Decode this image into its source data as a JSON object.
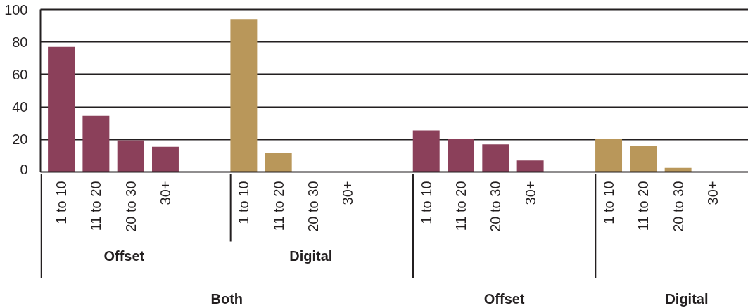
{
  "chart_data": {
    "type": "bar",
    "categories": [
      "1 to 10",
      "11 to 20",
      "20 to 30",
      "30+",
      "1 to 10",
      "11 to 20",
      "20 to 30",
      "30+",
      "1 to 10",
      "11 to 20",
      "20 to 30",
      "30+",
      "1 to 10",
      "11 to 20",
      "20 to 30",
      "30+"
    ],
    "values": [
      77,
      34.5,
      19.5,
      15.5,
      94,
      11.5,
      null,
      null,
      25.5,
      20.5,
      17,
      7,
      20.5,
      16,
      2.5,
      null
    ],
    "colors": [
      "#8b405a",
      "#8b405a",
      "#8b405a",
      "#8b405a",
      "#b9975a",
      "#b9975a",
      "#b9975a",
      "#b9975a",
      "#8b405a",
      "#8b405a",
      "#8b405a",
      "#8b405a",
      "#b9975a",
      "#b9975a",
      "#b9975a",
      "#b9975a"
    ],
    "ylim": [
      0,
      100
    ],
    "yticks": [
      0,
      20,
      40,
      60,
      80,
      100
    ],
    "grid": "y",
    "annotations": [
      "Offset",
      "Digital",
      "Both",
      "Offset",
      "Digital"
    ]
  }
}
